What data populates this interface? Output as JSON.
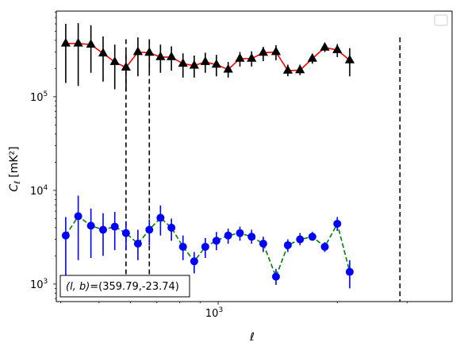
{
  "chart_data": {
    "type": "scatter",
    "title": "",
    "xlabel": "ℓ",
    "ylabel": "C_ℓ [mK²]",
    "xscale": "log",
    "yscale": "log",
    "xlim": [
      390,
      3900
    ],
    "ylim": [
      650,
      820000
    ],
    "grid": false,
    "legend": {
      "placement": "top-right",
      "entries": []
    },
    "x_ticks": [
      {
        "value": 1000,
        "base": "10",
        "exp": "3"
      }
    ],
    "y_ticks": [
      {
        "value": 1000,
        "base": "10",
        "exp": "3"
      },
      {
        "value": 10000,
        "base": "10",
        "exp": "4"
      },
      {
        "value": 100000,
        "base": "10",
        "exp": "5"
      }
    ],
    "vertical_lines": [
      {
        "x": 585,
        "y_range": [
          1250,
          410000
        ],
        "style": "dashed",
        "color": "#000000"
      },
      {
        "x": 670,
        "y_range": [
          1250,
          410000
        ],
        "style": "dashed",
        "color": "#000000"
      },
      {
        "x": 2880,
        "y_range": [
          650,
          430000
        ],
        "style": "dashed",
        "color": "#000000"
      }
    ],
    "annotation": {
      "prefix": "(l, b)",
      "text": "=(359.79,-23.74)"
    },
    "series": [
      {
        "marker": "triangle",
        "marker_color": "#000000",
        "line_color": "#ff0000",
        "line_style": "solid",
        "errorbar_color": "#000000",
        "points": [
          {
            "x": 412,
            "y": 370000,
            "yerr_low": 140000,
            "yerr_high": 600000
          },
          {
            "x": 443,
            "y": 370000,
            "yerr_low": 130000,
            "yerr_high": 610000
          },
          {
            "x": 477,
            "y": 360000,
            "yerr_low": 180000,
            "yerr_high": 580000
          },
          {
            "x": 512,
            "y": 290000,
            "yerr_low": 145000,
            "yerr_high": 440000
          },
          {
            "x": 548,
            "y": 235000,
            "yerr_low": 120000,
            "yerr_high": 360000
          },
          {
            "x": 585,
            "y": 205000,
            "yerr_low": 115000,
            "yerr_high": 300000
          },
          {
            "x": 627,
            "y": 300000,
            "yerr_low": 165000,
            "yerr_high": 430000
          },
          {
            "x": 670,
            "y": 295000,
            "yerr_low": 180000,
            "yerr_high": 410000
          },
          {
            "x": 715,
            "y": 265000,
            "yerr_low": 180000,
            "yerr_high": 360000
          },
          {
            "x": 762,
            "y": 265000,
            "yerr_low": 190000,
            "yerr_high": 345000
          },
          {
            "x": 815,
            "y": 225000,
            "yerr_low": 160000,
            "yerr_high": 290000
          },
          {
            "x": 870,
            "y": 215000,
            "yerr_low": 160000,
            "yerr_high": 275000
          },
          {
            "x": 928,
            "y": 235000,
            "yerr_low": 180000,
            "yerr_high": 295000
          },
          {
            "x": 990,
            "y": 220000,
            "yerr_low": 165000,
            "yerr_high": 280000
          },
          {
            "x": 1060,
            "y": 195000,
            "yerr_low": 160000,
            "yerr_high": 235000
          },
          {
            "x": 1135,
            "y": 255000,
            "yerr_low": 210000,
            "yerr_high": 300000
          },
          {
            "x": 1215,
            "y": 255000,
            "yerr_low": 210000,
            "yerr_high": 305000
          },
          {
            "x": 1300,
            "y": 295000,
            "yerr_low": 240000,
            "yerr_high": 340000
          },
          {
            "x": 1400,
            "y": 300000,
            "yerr_low": 245000,
            "yerr_high": 355000
          },
          {
            "x": 1500,
            "y": 190000,
            "yerr_low": 165000,
            "yerr_high": 220000
          },
          {
            "x": 1610,
            "y": 192000,
            "yerr_low": 170000,
            "yerr_high": 220000
          },
          {
            "x": 1730,
            "y": 255000,
            "yerr_low": 225000,
            "yerr_high": 285000
          },
          {
            "x": 1860,
            "y": 335000,
            "yerr_low": 300000,
            "yerr_high": 370000
          },
          {
            "x": 2000,
            "y": 315000,
            "yerr_low": 265000,
            "yerr_high": 365000
          },
          {
            "x": 2150,
            "y": 245000,
            "yerr_low": 165000,
            "yerr_high": 330000
          }
        ]
      },
      {
        "marker": "circle",
        "marker_color": "#0000ff",
        "line_color": "#008000",
        "line_style": "dashed",
        "errorbar_color": "#0000ff",
        "points": [
          {
            "x": 412,
            "y": 3300,
            "yerr_low": 1100,
            "yerr_high": 5200
          },
          {
            "x": 443,
            "y": 5300,
            "yerr_low": 1800,
            "yerr_high": 8800
          },
          {
            "x": 477,
            "y": 4200,
            "yerr_low": 1900,
            "yerr_high": 6400
          },
          {
            "x": 512,
            "y": 3800,
            "yerr_low": 2000,
            "yerr_high": 5700
          },
          {
            "x": 548,
            "y": 4100,
            "yerr_low": 2300,
            "yerr_high": 5900
          },
          {
            "x": 585,
            "y": 3500,
            "yerr_low": 2300,
            "yerr_high": 4700
          },
          {
            "x": 627,
            "y": 2700,
            "yerr_low": 1800,
            "yerr_high": 3800
          },
          {
            "x": 670,
            "y": 3800,
            "yerr_low": 2600,
            "yerr_high": 4900
          },
          {
            "x": 715,
            "y": 5100,
            "yerr_low": 3300,
            "yerr_high": 6900
          },
          {
            "x": 762,
            "y": 4000,
            "yerr_low": 2900,
            "yerr_high": 5000
          },
          {
            "x": 815,
            "y": 2500,
            "yerr_low": 1800,
            "yerr_high": 3300
          },
          {
            "x": 870,
            "y": 1750,
            "yerr_low": 1300,
            "yerr_high": 2200
          },
          {
            "x": 928,
            "y": 2500,
            "yerr_low": 1900,
            "yerr_high": 3100
          },
          {
            "x": 990,
            "y": 2900,
            "yerr_low": 2300,
            "yerr_high": 3600
          },
          {
            "x": 1060,
            "y": 3300,
            "yerr_low": 2700,
            "yerr_high": 3900
          },
          {
            "x": 1135,
            "y": 3500,
            "yerr_low": 2900,
            "yerr_high": 4100
          },
          {
            "x": 1215,
            "y": 3200,
            "yerr_low": 2700,
            "yerr_high": 3800
          },
          {
            "x": 1300,
            "y": 2700,
            "yerr_low": 2200,
            "yerr_high": 3200
          },
          {
            "x": 1400,
            "y": 1200,
            "yerr_low": 980,
            "yerr_high": 1450
          },
          {
            "x": 1500,
            "y": 2600,
            "yerr_low": 2200,
            "yerr_high": 3000
          },
          {
            "x": 1610,
            "y": 3000,
            "yerr_low": 2600,
            "yerr_high": 3500
          },
          {
            "x": 1730,
            "y": 3200,
            "yerr_low": 2900,
            "yerr_high": 3600
          },
          {
            "x": 1860,
            "y": 2500,
            "yerr_low": 2200,
            "yerr_high": 2800
          },
          {
            "x": 2000,
            "y": 4400,
            "yerr_low": 3700,
            "yerr_high": 5200
          },
          {
            "x": 2150,
            "y": 1350,
            "yerr_low": 900,
            "yerr_high": 1800
          }
        ]
      }
    ]
  }
}
